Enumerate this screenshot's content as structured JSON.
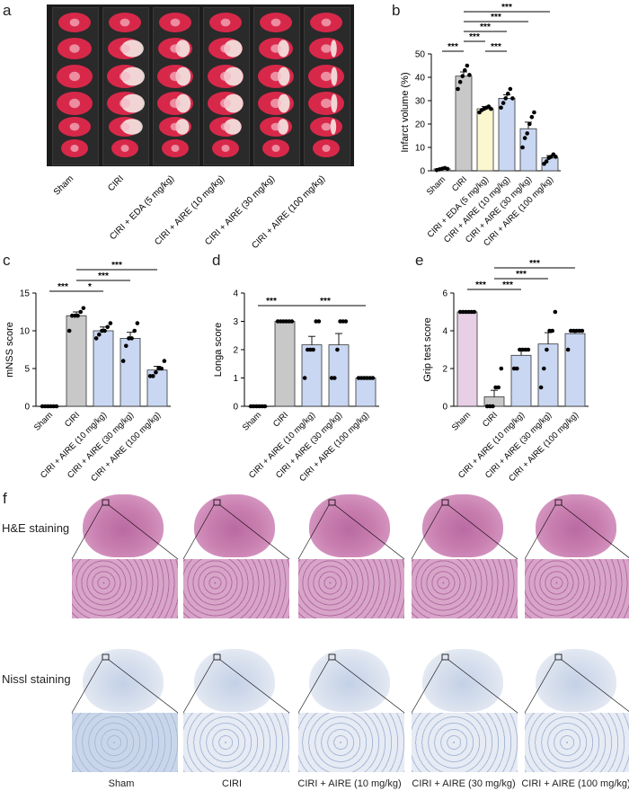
{
  "panel_labels": {
    "a": "a",
    "b": "b",
    "c": "c",
    "d": "d",
    "e": "e",
    "f": "f"
  },
  "panel_a": {
    "groups": [
      "Sham",
      "CIRI",
      "CIRI + EDA (5 mg/kg)",
      "CIRI + AIRE (10 mg/kg)",
      "CIRI + AIRE (30 mg/kg)",
      "CIRI + AIRE (100 mg/kg)"
    ]
  },
  "chart_data": [
    {
      "id": "b",
      "type": "bar",
      "ylabel": "Infarct volume (%)",
      "ylim": [
        0,
        50
      ],
      "yticks": [
        0,
        10,
        20,
        30,
        40,
        50
      ],
      "categories": [
        "Sham",
        "CIRI",
        "CIRI + EDA (5 mg/kg)",
        "CIRI + AIRE (10 mg/kg)",
        "CIRI + AIRE (30 mg/kg)",
        "CIRI + AIRE (100 mg/kg)"
      ],
      "values": [
        0.8,
        40.5,
        26.5,
        31,
        18,
        5.5
      ],
      "errors": [
        0.4,
        1.8,
        1.0,
        1.5,
        2.8,
        1.0
      ],
      "colors": [
        "#ffffff",
        "#c8c8c8",
        "#fbf7cf",
        "#c9d7f2",
        "#c9d7f2",
        "#c9d7f2"
      ],
      "points": [
        [
          0.3,
          0.6,
          0.9,
          1.2,
          0.8
        ],
        [
          35,
          38,
          40.5,
          43,
          45,
          41
        ],
        [
          25,
          26,
          26.5,
          27,
          27.5,
          26.5
        ],
        [
          27,
          29,
          31,
          33,
          35,
          31
        ],
        [
          10,
          14,
          16,
          20,
          23,
          25
        ],
        [
          3,
          4,
          5.5,
          6,
          7,
          6
        ]
      ],
      "significance": [
        {
          "a": 0,
          "b": 1,
          "label": "***",
          "level": 0
        },
        {
          "a": 1,
          "b": 2,
          "label": "***",
          "level": 1
        },
        {
          "a": 1,
          "b": 3,
          "label": "***",
          "level": 2
        },
        {
          "a": 1,
          "b": 4,
          "label": "***",
          "level": 3
        },
        {
          "a": 1,
          "b": 5,
          "label": "***",
          "level": 4
        },
        {
          "a": 2,
          "b": 3,
          "label": "***",
          "level": 0
        }
      ]
    },
    {
      "id": "c",
      "type": "bar",
      "ylabel": "mNSS score",
      "ylim": [
        0,
        15
      ],
      "yticks": [
        0,
        5,
        10,
        15
      ],
      "categories": [
        "Sham",
        "CIRI",
        "CIRI + AIRE (10 mg/kg)",
        "CIRI + AIRE (30 mg/kg)",
        "CIRI + AIRE (100 mg/kg)"
      ],
      "values": [
        0,
        12,
        10,
        9,
        4.8
      ],
      "errors": [
        0,
        0.5,
        0.5,
        0.8,
        0.5
      ],
      "colors": [
        "#ffffff",
        "#c8c8c8",
        "#c9d7f2",
        "#c9d7f2",
        "#c9d7f2"
      ],
      "points": [
        [
          0,
          0,
          0,
          0,
          0,
          0
        ],
        [
          10,
          12,
          12,
          12,
          12.5,
          13
        ],
        [
          9,
          9.5,
          10,
          10,
          10.5,
          11
        ],
        [
          6,
          8,
          9,
          9,
          10,
          11
        ],
        [
          4,
          4,
          4.5,
          5,
          5,
          6
        ]
      ],
      "significance": [
        {
          "a": 0,
          "b": 1,
          "label": "***",
          "level": 0
        },
        {
          "a": 1,
          "b": 2,
          "label": "*",
          "level": 0
        },
        {
          "a": 1,
          "b": 3,
          "label": "***",
          "level": 1
        },
        {
          "a": 1,
          "b": 4,
          "label": "***",
          "level": 2
        }
      ]
    },
    {
      "id": "d",
      "type": "bar",
      "ylabel": "Longa score",
      "ylim": [
        0,
        4
      ],
      "yticks": [
        0,
        1,
        2,
        3,
        4
      ],
      "categories": [
        "Sham",
        "CIRI",
        "CIRI + AIRE (10 mg/kg)",
        "CIRI + AIRE (30 mg/kg)",
        "CIRI + AIRE (100 mg/kg)"
      ],
      "values": [
        0,
        3,
        2.17,
        2.17,
        1
      ],
      "errors": [
        0,
        0,
        0.3,
        0.4,
        0
      ],
      "colors": [
        "#ffffff",
        "#c8c8c8",
        "#c9d7f2",
        "#c9d7f2",
        "#c9d7f2"
      ],
      "points": [
        [
          0,
          0,
          0,
          0,
          0,
          0
        ],
        [
          3,
          3,
          3,
          3,
          3,
          3
        ],
        [
          1,
          2,
          2,
          2,
          3,
          3
        ],
        [
          1,
          1,
          2,
          3,
          3,
          3
        ],
        [
          1,
          1,
          1,
          1,
          1,
          1
        ]
      ],
      "significance": [
        {
          "a": 0,
          "b": 1,
          "label": "***",
          "level": 0
        },
        {
          "a": 1,
          "b": 4,
          "label": "***",
          "level": 0
        }
      ]
    },
    {
      "id": "e",
      "type": "bar",
      "ylabel": "Grip test score",
      "ylim": [
        0,
        6
      ],
      "yticks": [
        0,
        2,
        4,
        6
      ],
      "categories": [
        "Sham",
        "CIRI",
        "CIRI + AIRE (10 mg/kg)",
        "CIRI + AIRE (30 mg/kg)",
        "CIRI + AIRE (100 mg/kg)"
      ],
      "values": [
        5,
        0.5,
        2.7,
        3.3,
        3.85
      ],
      "errors": [
        0,
        0.35,
        0.3,
        0.6,
        0.2
      ],
      "colors": [
        "#e7cfe6",
        "#c8c8c8",
        "#c9d7f2",
        "#c9d7f2",
        "#c9d7f2"
      ],
      "points": [
        [
          5,
          5,
          5,
          5,
          5,
          5
        ],
        [
          0,
          0,
          0,
          1,
          1,
          2
        ],
        [
          2,
          2,
          3,
          3,
          3,
          3
        ],
        [
          1,
          2,
          3,
          4,
          4,
          5
        ],
        [
          3,
          4,
          4,
          4,
          4,
          4
        ]
      ],
      "significance": [
        {
          "a": 0,
          "b": 1,
          "label": "***",
          "level": 0
        },
        {
          "a": 1,
          "b": 2,
          "label": "***",
          "level": 0
        },
        {
          "a": 1,
          "b": 3,
          "label": "***",
          "level": 1
        },
        {
          "a": 1,
          "b": 4,
          "label": "***",
          "level": 2
        }
      ]
    }
  ],
  "panel_f": {
    "row_labels": [
      "H&E staining",
      "Nissl staining"
    ],
    "captions": [
      "Sham",
      "CIRI",
      "CIRI + AIRE (10 mg/kg)",
      "CIRI + AIRE (30 mg/kg)",
      "CIRI + AIRE (100 mg/kg)"
    ],
    "colors": {
      "he_brain": "#c97fb0",
      "he_zoom": "#d7a5c8",
      "nissl_brain": "#d9e1ee",
      "nissl_zoom": "#e6ebf4",
      "nissl_sham_zoom": "#c9d6ea"
    }
  }
}
